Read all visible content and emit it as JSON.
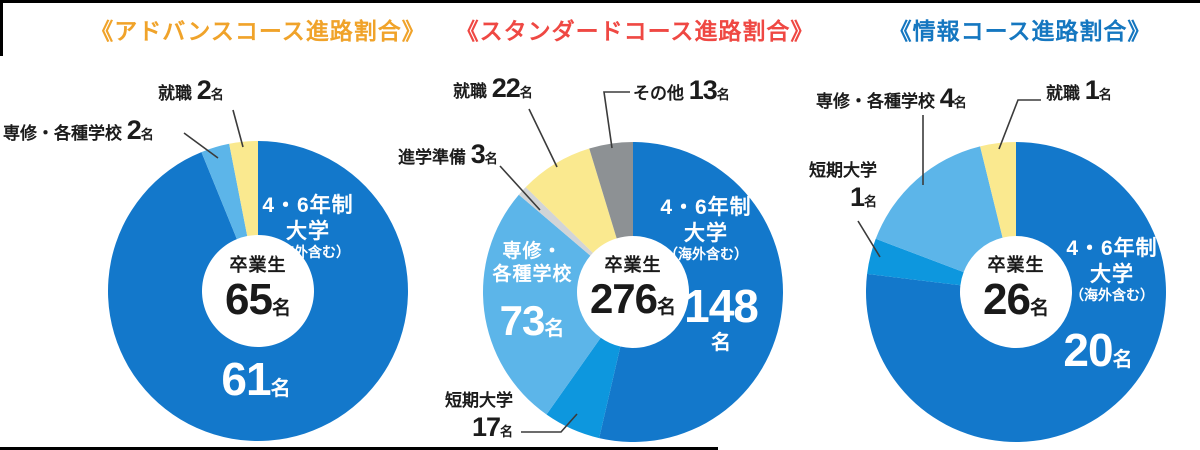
{
  "unit_suffix": "名",
  "chart_data": [
    {
      "type": "pie",
      "subtype": "donut",
      "title": "《アドバンスコース進路割合》",
      "title_color": "#f0a32a",
      "center_label": "卒業生",
      "center_value": 65,
      "unit": "名",
      "legend_position": "none",
      "slices": [
        {
          "key": "university",
          "label": "4・6年制大学（海外含む）",
          "label_lines": [
            "4・6年制",
            "大学",
            "（海外含む）"
          ],
          "value": 61,
          "color": "#1378cb",
          "label_position": "inside"
        },
        {
          "key": "vocational-school",
          "label": "専修・各種学校",
          "value": 2,
          "color": "#5cb5e9",
          "label_position": "outside"
        },
        {
          "key": "employment",
          "label": "就職",
          "value": 2,
          "color": "#fae98f",
          "label_position": "outside"
        }
      ]
    },
    {
      "type": "pie",
      "subtype": "donut",
      "title": "《スタンダードコース進路割合》",
      "title_color": "#ef4843",
      "center_label": "卒業生",
      "center_value": 276,
      "unit": "名",
      "legend_position": "none",
      "slices": [
        {
          "key": "university",
          "label": "4・6年制大学（海外含む）",
          "label_lines": [
            "4・6年制",
            "大学",
            "（海外含む）"
          ],
          "value": 148,
          "color": "#1378cb",
          "label_position": "inside"
        },
        {
          "key": "junior-college",
          "label": "短期大学",
          "value": 17,
          "color": "#0d97de",
          "label_position": "outside"
        },
        {
          "key": "vocational-school",
          "label": "専修・各種学校",
          "label_lines": [
            "専修・",
            "各種学校"
          ],
          "value": 73,
          "color": "#5cb5e9",
          "label_position": "inside"
        },
        {
          "key": "prep-for-higher-ed",
          "label": "進学準備",
          "value": 3,
          "color": "#d2d4d6",
          "label_position": "outside"
        },
        {
          "key": "employment",
          "label": "就職",
          "value": 22,
          "color": "#fae98f",
          "label_position": "outside"
        },
        {
          "key": "other",
          "label": "その他",
          "value": 13,
          "color": "#8d9194",
          "label_position": "outside"
        }
      ]
    },
    {
      "type": "pie",
      "subtype": "donut",
      "title": "《情報コース進路割合》",
      "title_color": "#1577c0",
      "center_label": "卒業生",
      "center_value": 26,
      "unit": "名",
      "legend_position": "none",
      "slices": [
        {
          "key": "university",
          "label": "4・6年制大学（海外含む）",
          "label_lines": [
            "4・6年制",
            "大学",
            "（海外含む）"
          ],
          "value": 20,
          "color": "#1378cb",
          "label_position": "inside"
        },
        {
          "key": "junior-college",
          "label": "短期大学",
          "value": 1,
          "color": "#0d97de",
          "label_position": "outside"
        },
        {
          "key": "vocational-school",
          "label": "専修・各種学校",
          "value": 4,
          "color": "#5cb5e9",
          "label_position": "outside"
        },
        {
          "key": "employment",
          "label": "就職",
          "value": 1,
          "color": "#fae98f",
          "label_position": "outside"
        }
      ]
    }
  ]
}
